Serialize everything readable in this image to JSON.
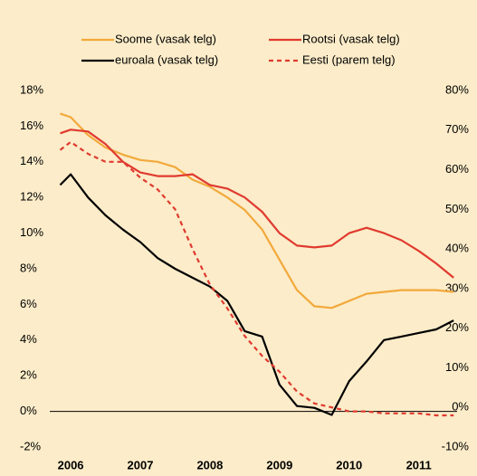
{
  "chart_data": {
    "type": "line",
    "x": [
      2005.85,
      2006,
      2006.25,
      2006.5,
      2006.75,
      2007,
      2007.25,
      2007.5,
      2007.75,
      2008,
      2008.25,
      2008.5,
      2008.75,
      2009,
      2009.25,
      2009.5,
      2009.75,
      2010,
      2010.25,
      2010.5,
      2010.75,
      2011,
      2011.25,
      2011.5
    ],
    "series": [
      {
        "name": "Soome (vasak telg)",
        "color": "#f2a93b",
        "dash": false,
        "values": [
          16.7,
          16.5,
          15.5,
          14.8,
          14.4,
          14.1,
          14.0,
          13.7,
          13.0,
          12.6,
          12.0,
          11.3,
          10.2,
          8.5,
          6.8,
          5.9,
          5.8,
          6.2,
          6.6,
          6.7,
          6.8,
          6.8,
          6.8,
          6.7
        ]
      },
      {
        "name": "Rootsi (vasak telg)",
        "color": "#e03a2f",
        "dash": false,
        "values": [
          15.6,
          15.8,
          15.7,
          15.0,
          14.0,
          13.4,
          13.2,
          13.2,
          13.3,
          12.7,
          12.5,
          12.0,
          11.2,
          10.0,
          9.3,
          9.2,
          9.3,
          10.0,
          10.3,
          10.0,
          9.6,
          9.0,
          8.3,
          7.5
        ]
      },
      {
        "name": "euroala (vasak telg)",
        "color": "#000000",
        "dash": false,
        "values": [
          12.7,
          13.3,
          12.0,
          11.0,
          10.2,
          9.5,
          8.6,
          8.0,
          7.5,
          7.0,
          6.2,
          4.5,
          4.2,
          1.5,
          0.3,
          0.2,
          -0.2,
          1.7,
          2.8,
          4.0,
          4.2,
          4.4,
          4.6,
          5.1
        ]
      },
      {
        "name": "Eesti (parem telg)",
        "color": "#e03a2f",
        "dash": true,
        "axis": "y2",
        "values": [
          65,
          67,
          64,
          62,
          62,
          58,
          55,
          50,
          40,
          31,
          25,
          18,
          13,
          9,
          4,
          1,
          0,
          -1,
          -1,
          -1.5,
          -1.5,
          -1.5,
          -2,
          -2
        ]
      }
    ],
    "xlim": [
      2005.7,
      2011.55
    ],
    "xticks": [
      2006,
      2007,
      2008,
      2009,
      2010,
      2011
    ],
    "ylim": [
      -2,
      18
    ],
    "yticks": [
      {
        "value": -2,
        "label": "-2%"
      },
      {
        "value": 0,
        "label": "0%"
      },
      {
        "value": 2,
        "label": "2%"
      },
      {
        "value": 4,
        "label": "4%"
      },
      {
        "value": 6,
        "label": "6%"
      },
      {
        "value": 8,
        "label": "8%"
      },
      {
        "value": 10,
        "label": "10%"
      },
      {
        "value": 12,
        "label": "12%"
      },
      {
        "value": 14,
        "label": "14%"
      },
      {
        "value": 16,
        "label": "16%"
      },
      {
        "value": 18,
        "label": "18%"
      }
    ],
    "y2lim": [
      -10,
      80
    ],
    "y2ticks": [
      {
        "value": -10,
        "label": "-10%"
      },
      {
        "value": 0,
        "label": "0%"
      },
      {
        "value": 10,
        "label": "10%"
      },
      {
        "value": 20,
        "label": "20%"
      },
      {
        "value": 30,
        "label": "30%"
      },
      {
        "value": 40,
        "label": "40%"
      },
      {
        "value": 50,
        "label": "50%"
      },
      {
        "value": 60,
        "label": "60%"
      },
      {
        "value": 70,
        "label": "70%"
      },
      {
        "value": 80,
        "label": "80%"
      }
    ],
    "zero_line": true
  }
}
